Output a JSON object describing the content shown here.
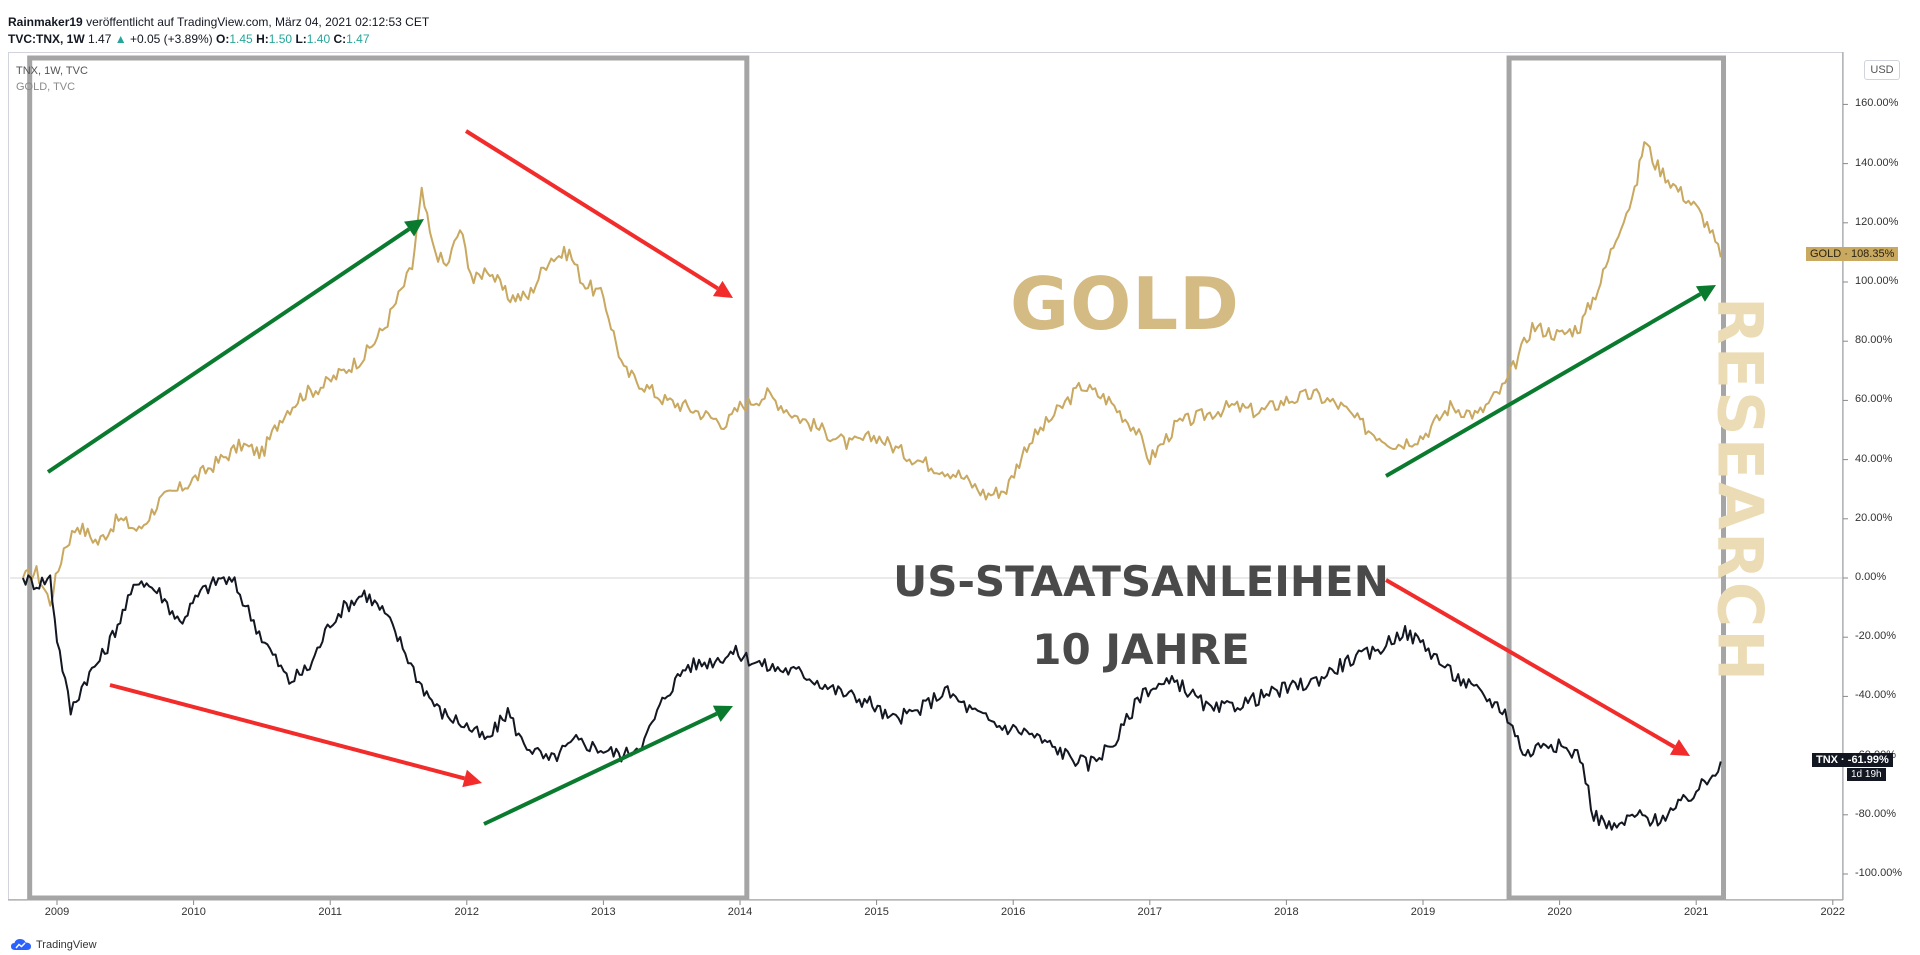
{
  "header": {
    "author": "Rainmaker19",
    "published": "veröffentlicht auf TradingView.com, März 04, 2021 02:12:53 CET",
    "symbol": "TVC:TNX, 1W",
    "last": "1.47",
    "arrow": "▲",
    "change": "+0.05 (+3.89%)",
    "o_label": "O:",
    "o": "1.45",
    "h_label": "H:",
    "h": "1.50",
    "l_label": "L:",
    "l": "1.40",
    "c_label": "C:",
    "c": "1.47"
  },
  "legend": {
    "line1": "TNX, 1W, TVC",
    "line2": "GOLD, TVC"
  },
  "axis": {
    "currency": "USD"
  },
  "tags": {
    "gold": "GOLD · 108.35%",
    "tnx": "TNX · -61.99%",
    "tnx_time": "1d 19h"
  },
  "overlay": {
    "gold": "GOLD",
    "bonds_line1": "US-STAATSANLEIHEN",
    "bonds_line2": "10 JAHRE",
    "research": "RESEARCH"
  },
  "footer": {
    "brand": "TradingView"
  },
  "colors": {
    "gold": "#c9a860",
    "tnx": "#131722",
    "up": "#0a7a2e",
    "down": "#f22b2b",
    "box": "#a5a5a5"
  },
  "icons": [
    "tradingview-cloud-icon"
  ],
  "chart_data": {
    "type": "line",
    "x_ticks": [
      "2009",
      "2010",
      "2011",
      "2012",
      "2013",
      "2014",
      "2015",
      "2016",
      "2017",
      "2018",
      "2019",
      "2020",
      "2021",
      "2022"
    ],
    "y_ticks": [
      "160.00%",
      "140.00%",
      "120.00%",
      "100.00%",
      "80.00%",
      "60.00%",
      "40.00%",
      "20.00%",
      "0.00%",
      "-20.00%",
      "-40.00%",
      "-60.00%",
      "-80.00%",
      "-100.00%"
    ],
    "xlim": [
      2008.75,
      2022.2
    ],
    "ylim": [
      -105,
      167
    ],
    "series": [
      {
        "name": "GOLD",
        "x": [
          2008.75,
          2008.85,
          2008.95,
          2009.05,
          2009.15,
          2009.3,
          2009.45,
          2009.6,
          2009.75,
          2009.9,
          2010.05,
          2010.2,
          2010.35,
          2010.5,
          2010.65,
          2010.8,
          2010.95,
          2011.1,
          2011.25,
          2011.4,
          2011.5,
          2011.6,
          2011.67,
          2011.75,
          2011.85,
          2011.95,
          2012.05,
          2012.15,
          2012.3,
          2012.45,
          2012.6,
          2012.75,
          2012.85,
          2013.0,
          2013.15,
          2013.3,
          2013.45,
          2013.6,
          2013.75,
          2013.9,
          2014.0,
          2014.2,
          2014.4,
          2014.6,
          2014.8,
          2015.0,
          2015.2,
          2015.4,
          2015.6,
          2015.8,
          2015.95,
          2016.1,
          2016.3,
          2016.5,
          2016.7,
          2016.9,
          2017.0,
          2017.2,
          2017.4,
          2017.6,
          2017.8,
          2018.0,
          2018.2,
          2018.4,
          2018.6,
          2018.8,
          2019.0,
          2019.2,
          2019.4,
          2019.6,
          2019.8,
          2020.0,
          2020.15,
          2020.3,
          2020.45,
          2020.55,
          2020.62,
          2020.7,
          2020.85,
          2021.0,
          2021.1,
          2021.18
        ],
        "y": [
          0,
          2,
          -8,
          10,
          18,
          12,
          20,
          16,
          26,
          30,
          35,
          40,
          45,
          42,
          55,
          62,
          65,
          70,
          75,
          85,
          95,
          105,
          130,
          112,
          105,
          118,
          100,
          105,
          95,
          95,
          108,
          110,
          100,
          95,
          70,
          65,
          60,
          58,
          55,
          52,
          58,
          62,
          55,
          50,
          45,
          48,
          42,
          38,
          35,
          28,
          30,
          45,
          55,
          65,
          60,
          50,
          40,
          52,
          55,
          58,
          56,
          60,
          62,
          58,
          50,
          45,
          48,
          58,
          55,
          65,
          85,
          82,
          85,
          100,
          120,
          130,
          148,
          140,
          132,
          125,
          118,
          108.35
        ]
      },
      {
        "name": "TNX",
        "x": [
          2008.75,
          2008.85,
          2008.95,
          2009.0,
          2009.1,
          2009.2,
          2009.35,
          2009.5,
          2009.6,
          2009.75,
          2009.9,
          2010.05,
          2010.2,
          2010.3,
          2010.5,
          2010.7,
          2010.85,
          2011.0,
          2011.1,
          2011.25,
          2011.4,
          2011.55,
          2011.65,
          2011.8,
          2012.0,
          2012.15,
          2012.3,
          2012.4,
          2012.6,
          2012.8,
          2013.0,
          2013.15,
          2013.3,
          2013.45,
          2013.6,
          2013.8,
          2013.95,
          2014.2,
          2014.45,
          2014.7,
          2014.95,
          2015.1,
          2015.3,
          2015.5,
          2015.7,
          2015.9,
          2016.1,
          2016.4,
          2016.55,
          2016.75,
          2016.95,
          2017.2,
          2017.45,
          2017.7,
          2017.95,
          2018.2,
          2018.45,
          2018.65,
          2018.85,
          2019.0,
          2019.2,
          2019.45,
          2019.6,
          2019.75,
          2019.9,
          2020.05,
          2020.15,
          2020.25,
          2020.4,
          2020.55,
          2020.7,
          2020.85,
          2021.0,
          2021.1,
          2021.18
        ],
        "y": [
          0,
          -2,
          0,
          -20,
          -45,
          -35,
          -25,
          -10,
          0,
          -5,
          -15,
          -5,
          0,
          -2,
          -20,
          -35,
          -30,
          -15,
          -10,
          -5,
          -12,
          -25,
          -35,
          -45,
          -50,
          -55,
          -45,
          -55,
          -62,
          -55,
          -58,
          -60,
          -55,
          -40,
          -30,
          -28,
          -25,
          -30,
          -32,
          -38,
          -42,
          -48,
          -45,
          -38,
          -45,
          -50,
          -52,
          -60,
          -63,
          -55,
          -38,
          -35,
          -45,
          -42,
          -38,
          -35,
          -28,
          -25,
          -18,
          -22,
          -32,
          -40,
          -45,
          -60,
          -55,
          -58,
          -60,
          -80,
          -85,
          -80,
          -82,
          -78,
          -72,
          -68,
          -61.99
        ]
      }
    ]
  }
}
